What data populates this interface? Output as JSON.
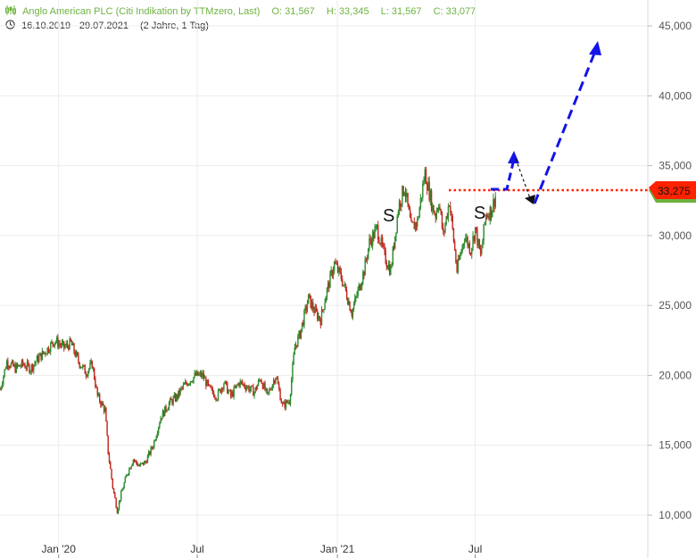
{
  "header": {
    "title": "Anglo American PLC (Citi Indikation by TTMzero, Last)",
    "open": "O: 31,567",
    "high": "H: 33,345",
    "low": "L: 31,567",
    "close": "C: 33,077",
    "date_range": "16.10.2019 - 29.07.2021",
    "period": "(2 Jahre, 1 Tag)",
    "icons": {
      "chart": "candlestick-icon",
      "clock": "clock-icon"
    }
  },
  "chart_data": {
    "type": "line",
    "x_ticks": [
      "Jan '20",
      "Jul",
      "Jan '21",
      "Jul"
    ],
    "y_ticks": [
      "10,000",
      "15,000",
      "20,000",
      "25,000",
      "30,000",
      "35,000",
      "40,000",
      "45,000"
    ],
    "y_tick_values": [
      10000,
      15000,
      20000,
      25000,
      30000,
      35000,
      40000,
      45000
    ],
    "ylim": [
      7500,
      47500
    ],
    "series": [
      {
        "dates": [
          "2019-10-16",
          "2019-10-25",
          "2019-11-05",
          "2019-11-15",
          "2019-11-25",
          "2019-12-05",
          "2019-12-16",
          "2019-12-27",
          "2020-01-08",
          "2020-01-17",
          "2020-01-27",
          "2020-02-06",
          "2020-02-14",
          "2020-02-21",
          "2020-03-02",
          "2020-03-06",
          "2020-03-12",
          "2020-03-18",
          "2020-03-23",
          "2020-03-31",
          "2020-04-08",
          "2020-04-16",
          "2020-04-24",
          "2020-05-04",
          "2020-05-14",
          "2020-05-25",
          "2020-06-05",
          "2020-06-10",
          "2020-06-18",
          "2020-06-29",
          "2020-07-08",
          "2020-07-17",
          "2020-07-27",
          "2020-08-05",
          "2020-08-14",
          "2020-08-25",
          "2020-09-04",
          "2020-09-14",
          "2020-09-22",
          "2020-10-01",
          "2020-10-12",
          "2020-10-21",
          "2020-10-30",
          "2020-11-06",
          "2020-11-13",
          "2020-11-24",
          "2020-12-03",
          "2020-12-10",
          "2020-12-17",
          "2020-12-28",
          "2021-01-06",
          "2021-01-12",
          "2021-01-20",
          "2021-01-28",
          "2021-02-05",
          "2021-02-12",
          "2021-02-22",
          "2021-03-04",
          "2021-03-12",
          "2021-03-22",
          "2021-03-30",
          "2021-04-08",
          "2021-04-16",
          "2021-04-26",
          "2021-05-06",
          "2021-05-10",
          "2021-05-14",
          "2021-05-20",
          "2021-05-28",
          "2021-06-07",
          "2021-06-17",
          "2021-06-25",
          "2021-07-01",
          "2021-07-08",
          "2021-07-15",
          "2021-07-22",
          "2021-07-29"
        ],
        "values": [
          19000,
          21000,
          20500,
          20800,
          20500,
          21200,
          21800,
          22500,
          22000,
          22300,
          21000,
          20200,
          20800,
          18500,
          17500,
          14500,
          12000,
          10300,
          11500,
          13000,
          14000,
          13500,
          13800,
          15000,
          17000,
          18000,
          18500,
          19000,
          19500,
          20000,
          20000,
          19000,
          18500,
          19500,
          18500,
          19500,
          19200,
          18800,
          19800,
          18500,
          20000,
          17800,
          18200,
          22000,
          23000,
          25500,
          24500,
          24000,
          25800,
          28000,
          27000,
          26000,
          24500,
          26000,
          27500,
          29500,
          30500,
          28500,
          27500,
          32000,
          33500,
          30500,
          31000,
          34500,
          32000,
          31500,
          32500,
          30000,
          32500,
          27500,
          30000,
          29000,
          30500,
          28500,
          31500,
          31800,
          33077
        ]
      }
    ],
    "current_price_label": "33,275",
    "current_price": 33275,
    "annotations": [
      "S",
      "S"
    ],
    "colors": {
      "up": "#2e8b2e",
      "down": "#c0281e",
      "arrow": "#1414e6",
      "level": "#ff2200",
      "grid": "#ececec"
    }
  }
}
